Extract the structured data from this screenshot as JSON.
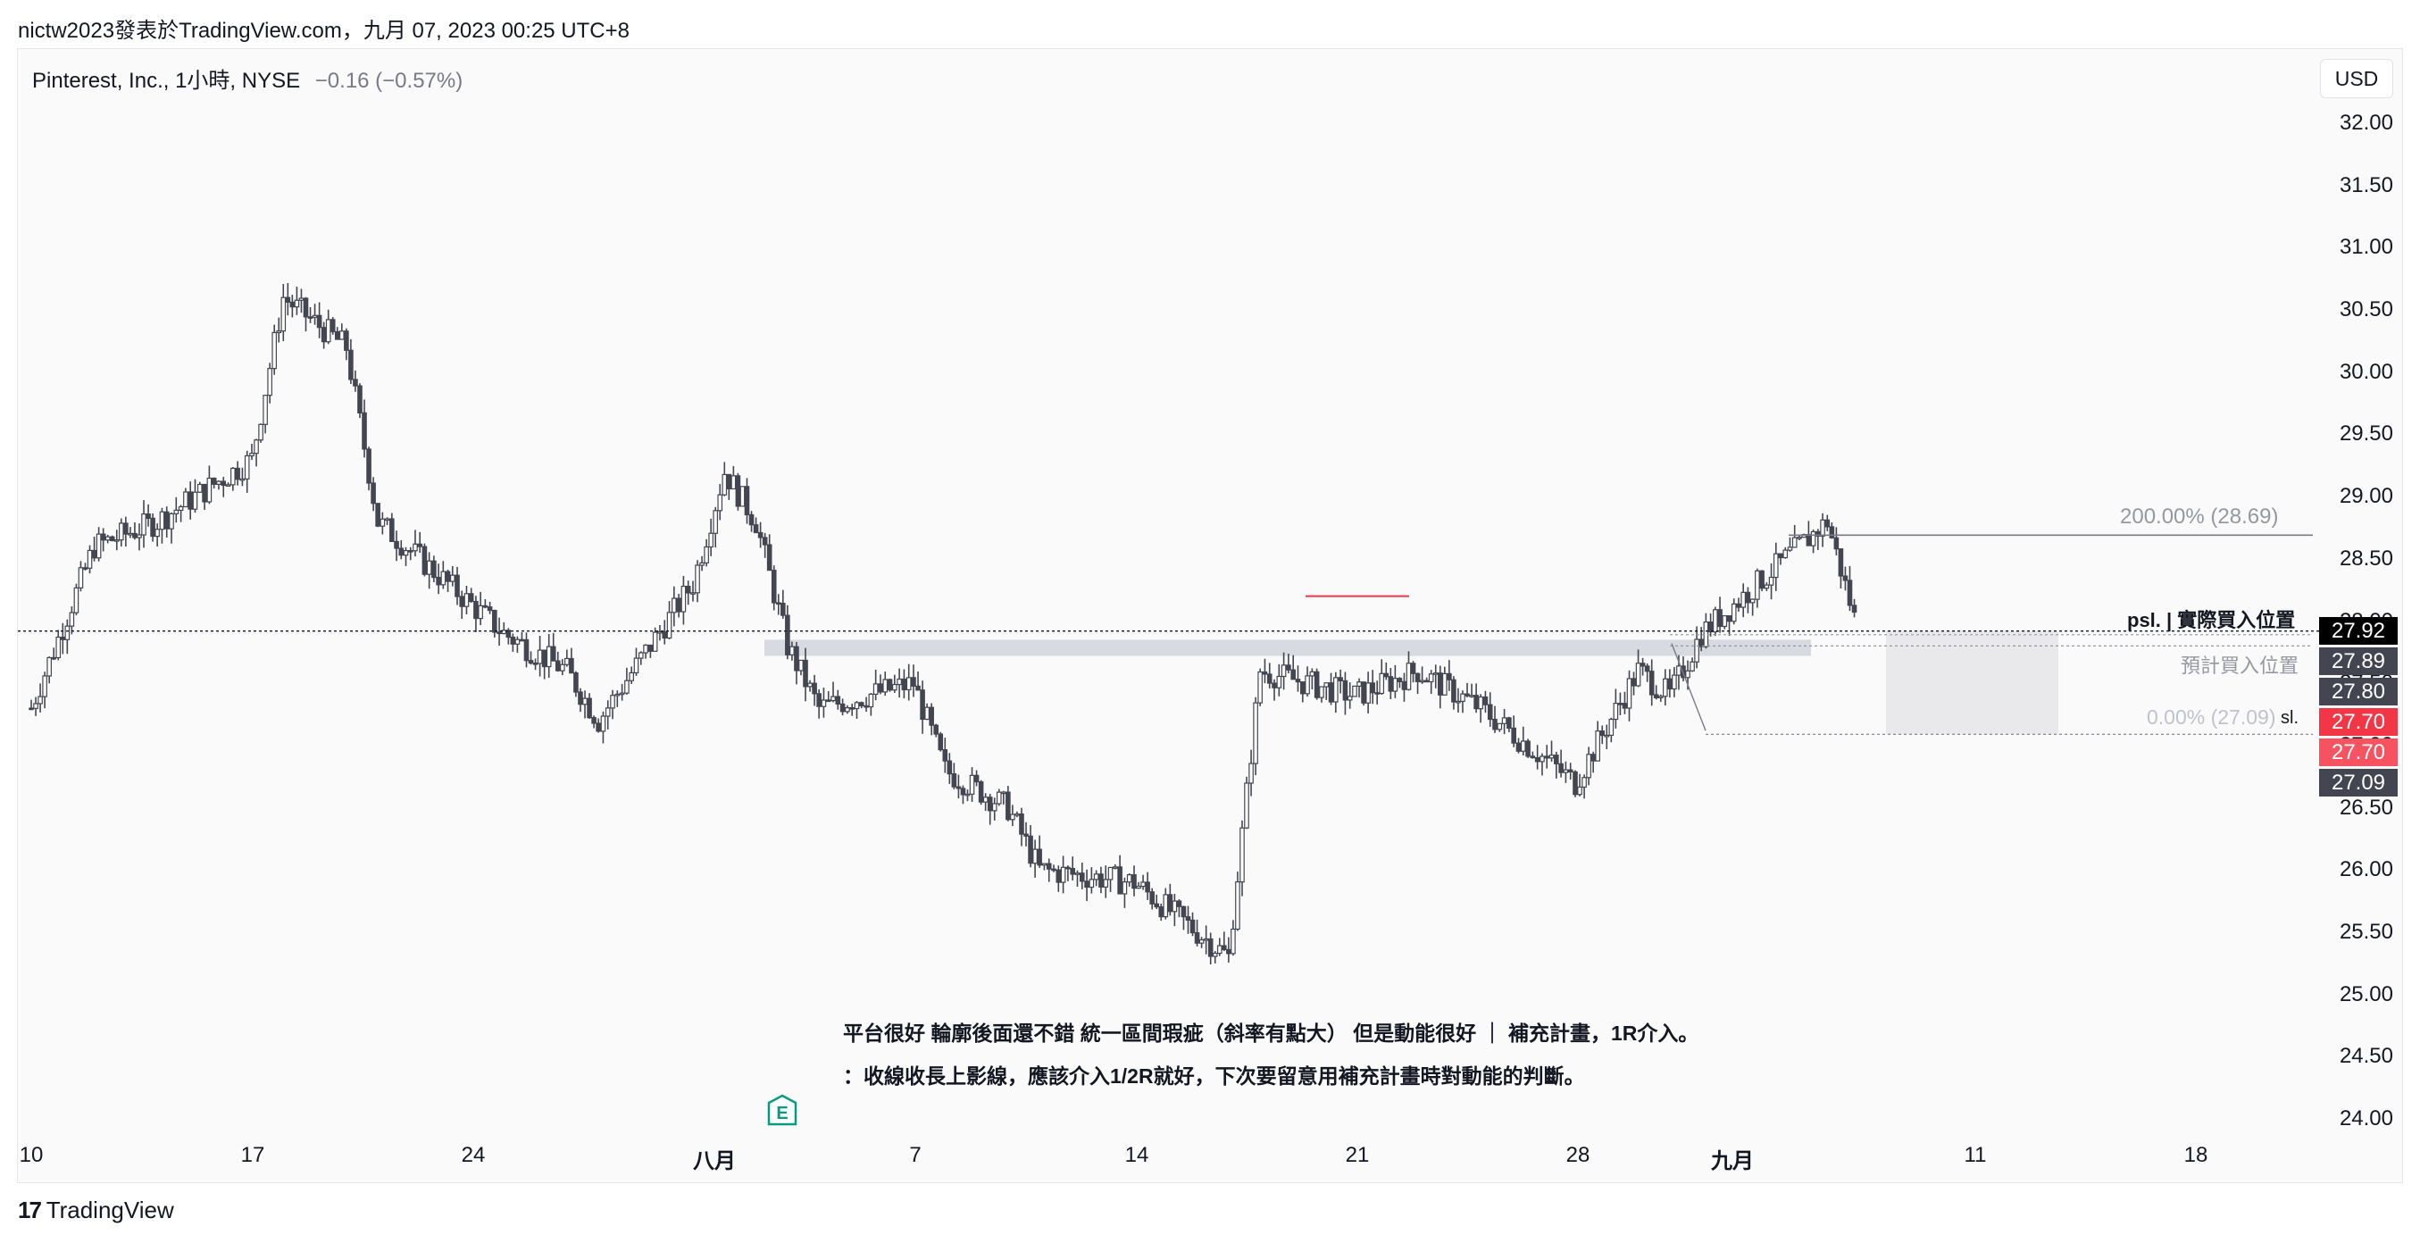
{
  "header": {
    "publisher_line": "nictw2023發表於TradingView.com，九月 07, 2023 00:25 UTC+8"
  },
  "symbol": {
    "name": "Pinterest, Inc., 1小時, NYSE",
    "change": "−0.16 (−0.57%)"
  },
  "currency_button": "USD",
  "price_axis": {
    "ticks": [
      "32.00",
      "31.50",
      "31.00",
      "30.50",
      "30.00",
      "29.50",
      "29.00",
      "28.50",
      "28.00",
      "27.50",
      "27.00",
      "26.50",
      "26.00",
      "25.50",
      "25.00",
      "24.50",
      "24.00"
    ]
  },
  "time_axis": {
    "labels": [
      "10",
      "17",
      "24",
      "八月",
      "7",
      "14",
      "21",
      "28",
      "九月",
      "11",
      "18"
    ]
  },
  "price_badges": [
    {
      "label": "27.92",
      "color": "#000000"
    },
    {
      "label": "27.89",
      "color": "#434651"
    },
    {
      "label": "27.80",
      "color": "#434651"
    },
    {
      "label": "27.70",
      "color": "#f23645"
    },
    {
      "label": "27.70",
      "color": "#f7525f"
    },
    {
      "label": "27.09",
      "color": "#434651"
    }
  ],
  "annotations": {
    "fib_200": "200.00% (28.69)",
    "psl": "psl. | 實際買入位置",
    "planned_entry": "預計買入位置",
    "fib_0": "0.00% (27.09)",
    "sl": "sl."
  },
  "notes": {
    "line1": "平台很好 輪廓後面還不錯 統一區間瑕疵（斜率有點大） 但是動能很好 ｜ 補充計畫，1R介入。",
    "line2": "：收線收長上影線，應該介入1/2R就好，下次要留意用補充計畫時對動能的判斷。"
  },
  "earnings_marker": "E",
  "footer": {
    "brand": "TradingView"
  },
  "colors": {
    "up": "#ffffff",
    "down": "#434651",
    "outline": "#434651",
    "accent_red": "#f23645"
  },
  "chart_data": {
    "type": "candlestick",
    "title": "Pinterest, Inc., 1小時, NYSE",
    "ylim": [
      24.0,
      32.0
    ],
    "ylabel": "USD",
    "grid": false,
    "levels": {
      "fib_200": 28.69,
      "psl_actual_entry": 27.92,
      "planned_entry": 27.89,
      "resistance": 27.8,
      "sl": 27.09
    },
    "swing_path": [
      {
        "x": "2023-07-10",
        "y": 27.3
      },
      {
        "x": "2023-07-12",
        "y": 28.6
      },
      {
        "x": "2023-07-14",
        "y": 28.8
      },
      {
        "x": "2023-07-17",
        "y": 29.3
      },
      {
        "x": "2023-07-18",
        "y": 30.6
      },
      {
        "x": "2023-07-20",
        "y": 30.2
      },
      {
        "x": "2023-07-21",
        "y": 28.8
      },
      {
        "x": "2023-07-25",
        "y": 27.9
      },
      {
        "x": "2023-07-27",
        "y": 27.6
      },
      {
        "x": "2023-07-28",
        "y": 27.2
      },
      {
        "x": "2023-07-31",
        "y": 28.3
      },
      {
        "x": "2023-08-01",
        "y": 29.2
      },
      {
        "x": "2023-08-02",
        "y": 28.8
      },
      {
        "x": "2023-08-03",
        "y": 27.8
      },
      {
        "x": "2023-08-04",
        "y": 27.3
      },
      {
        "x": "2023-08-07",
        "y": 27.5
      },
      {
        "x": "2023-08-08",
        "y": 26.8
      },
      {
        "x": "2023-08-10",
        "y": 26.5
      },
      {
        "x": "2023-08-11",
        "y": 26.0
      },
      {
        "x": "2023-08-14",
        "y": 25.9
      },
      {
        "x": "2023-08-16",
        "y": 25.5
      },
      {
        "x": "2023-08-17",
        "y": 25.3
      },
      {
        "x": "2023-08-18",
        "y": 27.6
      },
      {
        "x": "2023-08-21",
        "y": 27.4
      },
      {
        "x": "2023-08-23",
        "y": 27.6
      },
      {
        "x": "2023-08-25",
        "y": 27.3
      },
      {
        "x": "2023-08-28",
        "y": 26.7
      },
      {
        "x": "2023-08-30",
        "y": 27.6
      },
      {
        "x": "2023-08-31",
        "y": 27.4
      },
      {
        "x": "2023-09-01",
        "y": 27.9
      },
      {
        "x": "2023-09-05",
        "y": 28.8
      },
      {
        "x": "2023-09-06",
        "y": 27.9
      }
    ]
  }
}
